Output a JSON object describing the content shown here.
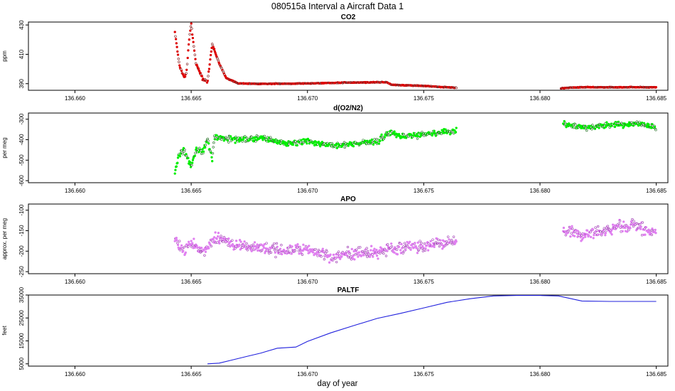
{
  "figure_title": "080515a   Interval a Aircraft Data 1",
  "x_axis_label": "day of year",
  "chart_data": [
    {
      "type": "scatter",
      "title": "CO2",
      "ylabel": "ppm",
      "xlim": [
        136.658,
        136.6855
      ],
      "ylim": [
        385.5,
        432
      ],
      "xticks": [
        "136.660",
        "136.665",
        "136.670",
        "136.675",
        "136.680",
        "136.685"
      ],
      "yticks": [
        "390",
        "410",
        "430"
      ],
      "color": "#dd0000",
      "outline_color": "#7a1010",
      "x": [
        136.6643,
        136.6645,
        136.6647,
        136.6648,
        136.6649,
        136.665,
        136.6652,
        136.6654,
        136.6655,
        136.6657,
        136.6659,
        136.6662,
        136.6665,
        136.667,
        136.668,
        136.669,
        136.67,
        136.671,
        136.672,
        136.6734,
        136.6736,
        136.674,
        136.675,
        136.676,
        136.6764,
        136.6809,
        136.6813,
        136.682,
        136.683,
        136.684,
        136.685
      ],
      "y": [
        425,
        402,
        394,
        398,
        418,
        431,
        404,
        397,
        393,
        391,
        417,
        404,
        394,
        390.2,
        389.9,
        390,
        390.2,
        390.5,
        390.8,
        391.0,
        389.4,
        389.0,
        388.5,
        387.5,
        387.2,
        386.8,
        387.4,
        387.6,
        387.5,
        387.6,
        387.5
      ]
    },
    {
      "type": "scatter",
      "title": "d(O2/N2)",
      "ylabel": "per meg",
      "xlim": [
        136.658,
        136.6855
      ],
      "ylim": [
        -610,
        -270
      ],
      "xticks": [
        "136.660",
        "136.665",
        "136.670",
        "136.675",
        "136.680",
        "136.685"
      ],
      "yticks": [
        "-600",
        "-500",
        "-400",
        "-300"
      ],
      "color": "#00ee00",
      "outline_color": "#1a6b1a",
      "x": [
        136.6643,
        136.6645,
        136.6647,
        136.665,
        136.6652,
        136.6655,
        136.6657,
        136.6659,
        136.666,
        136.667,
        136.668,
        136.669,
        136.67,
        136.671,
        136.672,
        136.673,
        136.6735,
        136.674,
        136.675,
        136.676,
        136.6764,
        136.681,
        136.682,
        136.683,
        136.684,
        136.685
      ],
      "y": [
        -560,
        -470,
        -445,
        -540,
        -450,
        -460,
        -390,
        -500,
        -390,
        -400,
        -390,
        -415,
        -410,
        -430,
        -420,
        -410,
        -365,
        -385,
        -375,
        -360,
        -355,
        -325,
        -340,
        -330,
        -320,
        -340
      ]
    },
    {
      "type": "scatter",
      "title": "APO",
      "ylabel": "approx. per meg",
      "xlim": [
        136.658,
        136.6855
      ],
      "ylim": [
        -255,
        -85
      ],
      "xticks": [
        "136.660",
        "136.665",
        "136.670",
        "136.675",
        "136.680",
        "136.685"
      ],
      "yticks": [
        "-250",
        "-200",
        "-150",
        "-100"
      ],
      "color": "#e080f0",
      "outline_color": "#9a2fb0",
      "x": [
        136.6643,
        136.6647,
        136.665,
        136.6655,
        136.666,
        136.667,
        136.668,
        136.669,
        136.67,
        136.671,
        136.672,
        136.673,
        136.674,
        136.675,
        136.676,
        136.6764,
        136.681,
        136.682,
        136.683,
        136.684,
        136.685
      ],
      "y": [
        -175,
        -200,
        -180,
        -200,
        -170,
        -185,
        -190,
        -200,
        -195,
        -215,
        -205,
        -205,
        -190,
        -185,
        -180,
        -175,
        -150,
        -160,
        -145,
        -135,
        -155
      ]
    },
    {
      "type": "line",
      "title": "PALTF",
      "ylabel": "feet",
      "xlim": [
        136.658,
        136.6855
      ],
      "ylim": [
        4000,
        35000
      ],
      "xticks": [
        "136.660",
        "136.665",
        "136.670",
        "136.675",
        "136.680",
        "136.685"
      ],
      "yticks": [
        "5000",
        "15000",
        "25000",
        "35000"
      ],
      "color": "#2020dd",
      "x": [
        136.6657,
        136.6662,
        136.6667,
        136.6675,
        136.668,
        136.6687,
        136.6695,
        136.67,
        136.671,
        136.672,
        136.673,
        136.674,
        136.675,
        136.676,
        136.677,
        136.678,
        136.679,
        136.68,
        136.6808,
        136.6818,
        136.683,
        136.685
      ],
      "y": [
        5000,
        5300,
        6500,
        8500,
        9700,
        11800,
        12300,
        14800,
        18500,
        21700,
        24800,
        27000,
        29400,
        31800,
        33400,
        34600,
        34800,
        34800,
        34600,
        32400,
        32200,
        32200
      ]
    }
  ]
}
